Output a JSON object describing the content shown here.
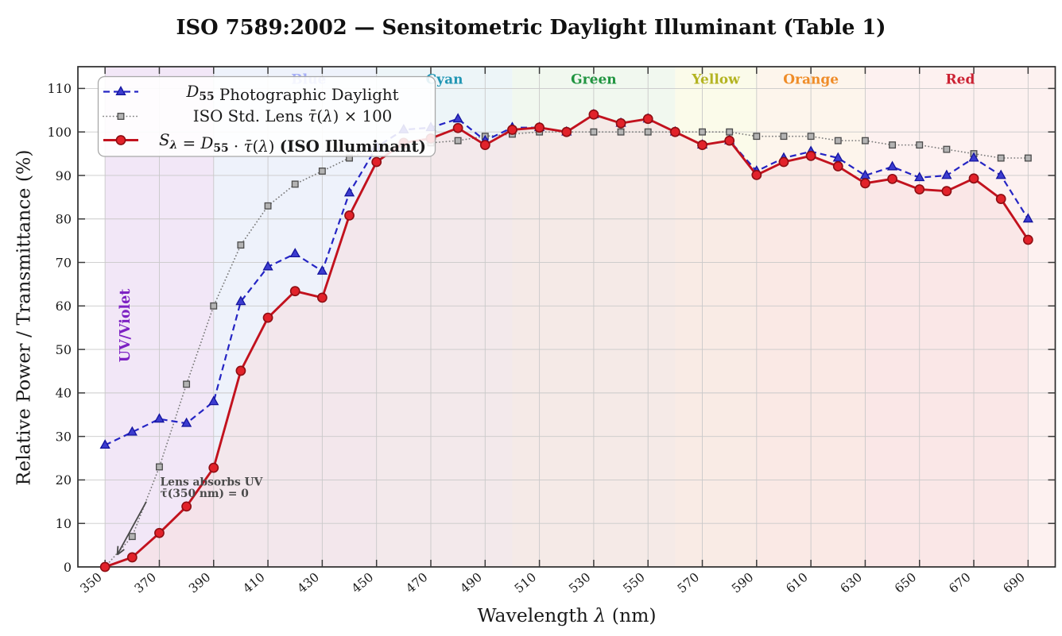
{
  "title": "ISO 7589:2002 — Sensitometric Daylight Illuminant (Table 1)",
  "axes": {
    "ylabel": "Relative Power / Transmittance (%)",
    "xlabel_segments": [
      {
        "t": "Wavelength "
      },
      {
        "t": "λ",
        "style": "i"
      },
      {
        "t": " (nm)"
      }
    ],
    "xlabel_plain": "Wavelength λ (nm)",
    "x_ticks": [
      350,
      370,
      390,
      410,
      430,
      450,
      470,
      490,
      510,
      530,
      550,
      570,
      590,
      610,
      630,
      650,
      670,
      690
    ],
    "y_ticks": [
      0,
      10,
      20,
      30,
      40,
      50,
      60,
      70,
      80,
      90,
      100,
      110
    ],
    "xlim": [
      340,
      700
    ],
    "ylim": [
      0,
      115
    ]
  },
  "chart_data": {
    "type": "line",
    "title": "ISO 7589:2002 — Sensitometric Daylight Illuminant (Table 1)",
    "xlabel": "Wavelength λ (nm)",
    "ylabel": "Relative Power / Transmittance (%)",
    "xlim": [
      340,
      700
    ],
    "ylim": [
      0,
      115
    ],
    "grid": true,
    "legend_position": "upper left",
    "x": [
      350,
      360,
      370,
      380,
      390,
      400,
      410,
      420,
      430,
      440,
      450,
      460,
      470,
      480,
      490,
      500,
      510,
      520,
      530,
      540,
      550,
      560,
      570,
      580,
      590,
      600,
      610,
      620,
      630,
      640,
      650,
      660,
      670,
      680,
      690
    ],
    "series": [
      {
        "name": "D55 Photographic Daylight",
        "color": "#2525c4",
        "linestyle": "dashed",
        "marker": "triangle",
        "values": [
          28,
          31,
          34,
          33,
          38,
          61,
          69,
          72,
          68,
          86,
          96.5,
          100.5,
          101,
          103,
          98,
          101,
          101,
          100,
          104,
          102,
          103,
          100,
          97,
          98,
          91,
          94,
          95.5,
          94,
          90,
          92,
          89.5,
          90,
          94,
          90,
          80
        ]
      },
      {
        "name": "ISO Std. Lens τ̄(λ) × 100",
        "color": "#7d7d7d",
        "linestyle": "dotted",
        "marker": "square",
        "values": [
          0,
          7,
          23,
          42,
          60,
          74,
          83,
          88,
          91,
          94,
          96.5,
          97,
          97.5,
          98,
          99,
          99.5,
          100,
          100,
          100,
          100,
          100,
          100,
          100,
          100,
          99,
          99,
          99,
          98,
          98,
          97,
          97,
          96,
          95,
          94,
          94
        ]
      },
      {
        "name": "Sλ = D55 · τ̄(λ) (ISO Illuminant)",
        "color": "#c2121e",
        "linestyle": "solid",
        "marker": "circle",
        "area_fill": true,
        "values": [
          0,
          2.2,
          7.8,
          13.9,
          22.8,
          45.1,
          57.3,
          63.4,
          61.9,
          80.8,
          93.1,
          97.5,
          98.5,
          100.9,
          97,
          100.5,
          101,
          100,
          104,
          102,
          103,
          100,
          97,
          98,
          90.1,
          93.1,
          94.5,
          92.1,
          88.2,
          89.2,
          86.8,
          86.4,
          89.3,
          84.6,
          75.2
        ]
      }
    ]
  },
  "legend": {
    "items": [
      {
        "series": 0,
        "segments": [
          {
            "t": "D",
            "style": "i"
          },
          {
            "t": "55",
            "style": "sub"
          },
          {
            "t": " Photographic Daylight"
          }
        ]
      },
      {
        "series": 1,
        "segments": [
          {
            "t": "ISO Std. Lens "
          },
          {
            "t": "τ̄",
            "style": "i"
          },
          {
            "t": "("
          },
          {
            "t": "λ",
            "style": "i"
          },
          {
            "t": ") × 100"
          }
        ]
      },
      {
        "series": 2,
        "segments": [
          {
            "t": "S",
            "style": "i"
          },
          {
            "t": "λ",
            "style": "subi"
          },
          {
            "t": " = "
          },
          {
            "t": "D",
            "style": "i"
          },
          {
            "t": "55",
            "style": "sub"
          },
          {
            "t": " · "
          },
          {
            "t": "τ̄",
            "style": "i"
          },
          {
            "t": "("
          },
          {
            "t": "λ",
            "style": "i"
          },
          {
            "t": ") "
          },
          {
            "t": "(ISO Illuminant)",
            "style": "b"
          }
        ]
      }
    ]
  },
  "bands": [
    {
      "label": "UV/Violet",
      "from": 350,
      "to": 390,
      "fill": "#f2e7f7",
      "label_color": "#7d22c3",
      "label_at": 359,
      "label_v": 55.5,
      "vertical": true
    },
    {
      "label": "Blue",
      "from": 390,
      "to": 450,
      "fill": "#eef2fb",
      "label_color": "#4050f0",
      "label_alpha": 0.42,
      "label_at": 425
    },
    {
      "label": "Cyan",
      "from": 450,
      "to": 500,
      "fill": "#edf5f8",
      "label_color": "#2196b4",
      "label_at": 475
    },
    {
      "label": "Green",
      "from": 500,
      "to": 560,
      "fill": "#f1f8ef",
      "label_color": "#209440",
      "label_at": 530
    },
    {
      "label": "Yellow",
      "from": 560,
      "to": 590,
      "fill": "#fbfbea",
      "label_color": "#b4b422",
      "label_at": 575
    },
    {
      "label": "Orange",
      "from": 590,
      "to": 630,
      "fill": "#fdf5ec",
      "label_color": "#ef8c28",
      "label_at": 610
    },
    {
      "label": "Red",
      "from": 630,
      "to": 700,
      "fill": "#fdf1f0",
      "label_color": "#cc2233",
      "label_at": 665
    }
  ],
  "annotation": {
    "lines": [
      "Lens absorbs UV",
      "τ̄(350 nm) = 0"
    ],
    "color": "#4a4a4a",
    "text_at": {
      "x": 370.3,
      "v": 20.5
    },
    "arrow_from": {
      "x": 365.2,
      "v": 15.0
    },
    "arrow_to": {
      "x": 354.5,
      "v": 2.8
    }
  },
  "style": {
    "grid_color": "#c9c9c9",
    "frame_color": "#2b2b2b",
    "tick_color": "#3a3a3a",
    "area_wash_rgba": "rgba(255,255,255,0.55)",
    "area_fill_rgba": "rgba(205,45,55,0.088)",
    "legend_bg": "rgba(255,255,255,0.88)",
    "legend_border": "#a8a8a8",
    "blue_marker_fill": "#3c3ccf",
    "blue_marker_edge": "#14149e",
    "gray_marker_fill": "#b3b3b3",
    "gray_marker_edge": "#4b4b4b",
    "red_marker_fill": "#e2222a",
    "red_marker_edge": "#8e0e13",
    "text_color": "#1a1a1a"
  }
}
